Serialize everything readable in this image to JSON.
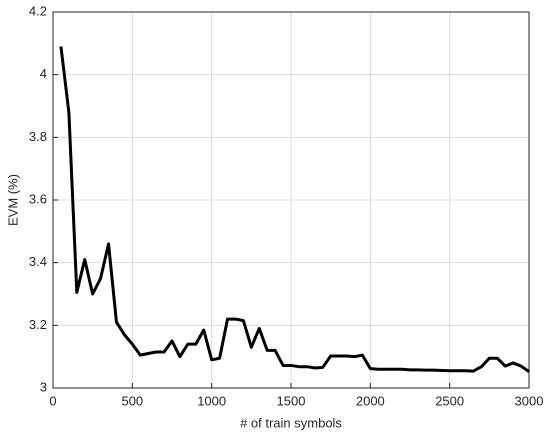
{
  "chart_data": {
    "type": "line",
    "x_label": "# of train symbols",
    "y_label": "EVM (%)",
    "x": [
      50,
      100,
      150,
      200,
      250,
      300,
      350,
      400,
      450,
      500,
      550,
      600,
      650,
      700,
      750,
      800,
      850,
      900,
      950,
      1000,
      1050,
      1100,
      1150,
      1200,
      1250,
      1300,
      1350,
      1400,
      1450,
      1500,
      1550,
      1600,
      1650,
      1700,
      1750,
      1800,
      1850,
      1900,
      1950,
      2000,
      2050,
      2100,
      2150,
      2200,
      2250,
      2300,
      2350,
      2400,
      2450,
      2500,
      2550,
      2600,
      2650,
      2700,
      2750,
      2800,
      2850,
      2900,
      2950,
      3000
    ],
    "series": [
      {
        "color": "#000000",
        "values": [
          4.09,
          3.88,
          3.305,
          3.41,
          3.3,
          3.35,
          3.46,
          3.21,
          3.17,
          3.14,
          3.105,
          3.11,
          3.115,
          3.115,
          3.15,
          3.1,
          3.14,
          3.14,
          3.185,
          3.09,
          3.095,
          3.22,
          3.22,
          3.215,
          3.13,
          3.19,
          3.12,
          3.12,
          3.072,
          3.072,
          3.068,
          3.068,
          3.064,
          3.066,
          3.102,
          3.102,
          3.102,
          3.1,
          3.105,
          3.062,
          3.06,
          3.06,
          3.06,
          3.06,
          3.058,
          3.058,
          3.057,
          3.057,
          3.056,
          3.055,
          3.055,
          3.055,
          3.054,
          3.068,
          3.095,
          3.095,
          3.07,
          3.08,
          3.07,
          3.052
        ]
      }
    ],
    "xlim": [
      0,
      3000
    ],
    "xticks": [
      0,
      500,
      1000,
      1500,
      2000,
      2500,
      3000
    ],
    "ylim": [
      3,
      4.2
    ],
    "yticks": [
      3,
      3.2,
      3.4,
      3.6,
      3.8,
      4,
      4.2
    ],
    "grid": true
  }
}
